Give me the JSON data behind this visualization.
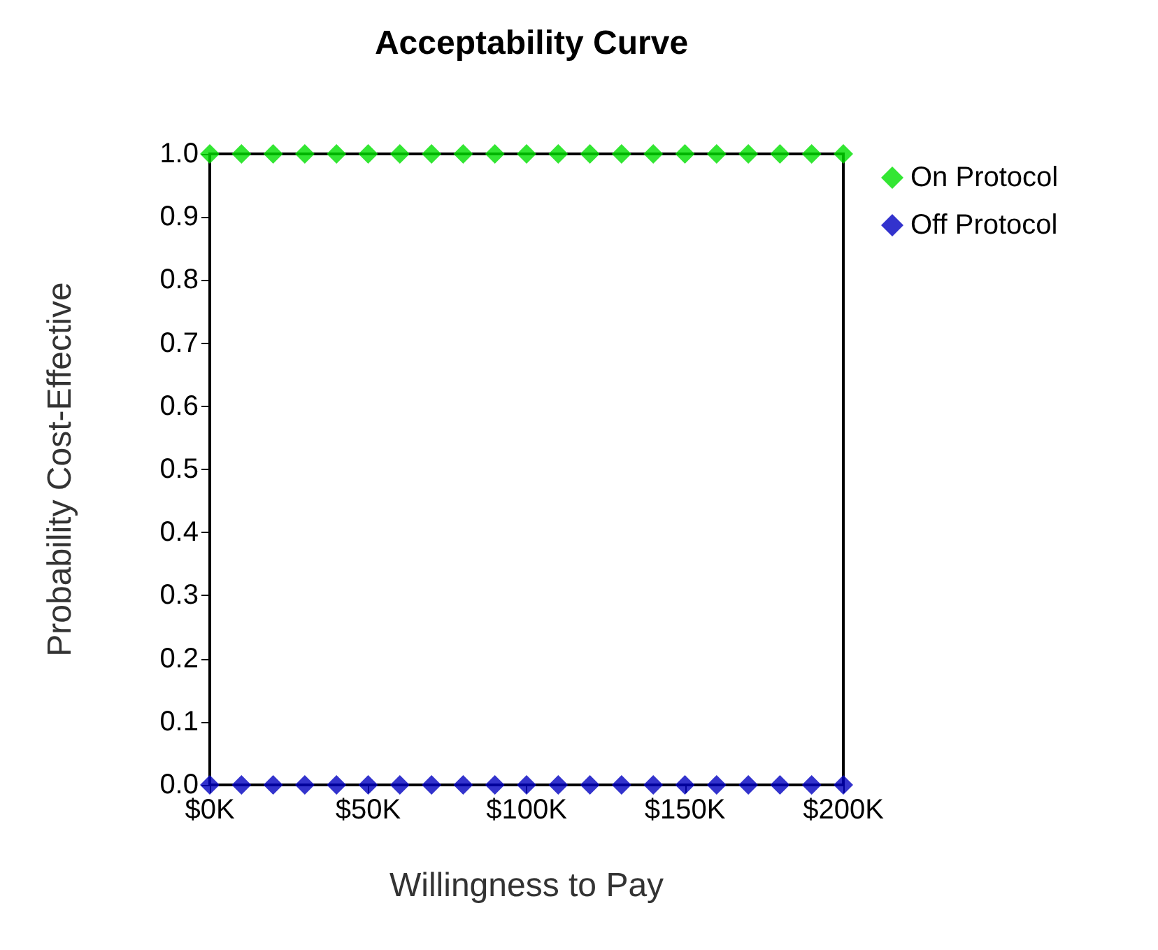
{
  "chart_data": {
    "type": "scatter",
    "title": "Acceptability Curve",
    "xlabel": "Willingness to Pay",
    "ylabel": "Probability Cost-Effective",
    "x": [
      0,
      10,
      20,
      30,
      40,
      50,
      60,
      70,
      80,
      90,
      100,
      110,
      120,
      130,
      140,
      150,
      160,
      170,
      180,
      190,
      200
    ],
    "series": [
      {
        "name": "On Protocol",
        "color": "#00e000",
        "values": [
          1,
          1,
          1,
          1,
          1,
          1,
          1,
          1,
          1,
          1,
          1,
          1,
          1,
          1,
          1,
          1,
          1,
          1,
          1,
          1,
          1
        ]
      },
      {
        "name": "Off Protocol",
        "color": "#0000c0",
        "values": [
          0,
          0,
          0,
          0,
          0,
          0,
          0,
          0,
          0,
          0,
          0,
          0,
          0,
          0,
          0,
          0,
          0,
          0,
          0,
          0,
          0
        ]
      }
    ],
    "xlim": [
      0,
      200
    ],
    "xticks": [
      {
        "value": 0,
        "label": "$0K"
      },
      {
        "value": 50,
        "label": "$50K"
      },
      {
        "value": 100,
        "label": "$100K"
      },
      {
        "value": 150,
        "label": "$150K"
      },
      {
        "value": 200,
        "label": "$200K"
      }
    ],
    "ylim": [
      0,
      1
    ],
    "yticks": [
      {
        "value": 0,
        "label": "0.0"
      },
      {
        "value": 0.1,
        "label": "0.1"
      },
      {
        "value": 0.2,
        "label": "0.2"
      },
      {
        "value": 0.3,
        "label": "0.3"
      },
      {
        "value": 0.4,
        "label": "0.4"
      },
      {
        "value": 0.5,
        "label": "0.5"
      },
      {
        "value": 0.6,
        "label": "0.6"
      },
      {
        "value": 0.7,
        "label": "0.7"
      },
      {
        "value": 0.8,
        "label": "0.8"
      },
      {
        "value": 0.9,
        "label": "0.9"
      },
      {
        "value": 1,
        "label": "1.0"
      }
    ],
    "grid": false,
    "legend": "top right",
    "marker": "diamond"
  }
}
